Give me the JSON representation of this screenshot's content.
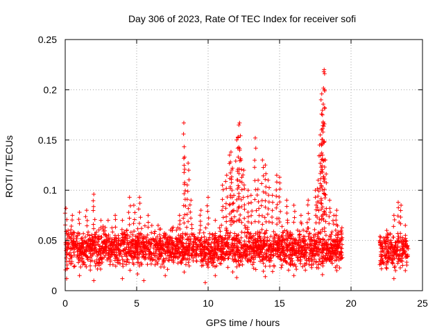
{
  "chart_data": {
    "type": "scatter",
    "title": "Day 306 of 2023, Rate Of TEC Index for receiver sofi",
    "xlabel": "GPS time / hours",
    "ylabel": "ROTI / TECUs",
    "xlim": [
      0,
      25
    ],
    "ylim": [
      0,
      0.25
    ],
    "xticks": [
      "0",
      "5",
      "10",
      "15",
      "20",
      "25"
    ],
    "yticks": [
      "0",
      "0.05",
      "0.1",
      "0.15",
      "0.2",
      "0.25"
    ],
    "grid": true,
    "marker": "+",
    "color": "#ff0000",
    "series": [
      {
        "name": "",
        "points": [
          [
            0.05,
            0.082
          ],
          [
            0.2,
            0.06
          ],
          [
            0.5,
            0.075
          ],
          [
            1.0,
            0.078
          ],
          [
            1.5,
            0.08
          ],
          [
            2.0,
            0.096
          ],
          [
            2.5,
            0.07
          ],
          [
            3.0,
            0.07
          ],
          [
            3.5,
            0.075
          ],
          [
            4.0,
            0.07
          ],
          [
            4.5,
            0.093
          ],
          [
            4.8,
            0.085
          ],
          [
            5.2,
            0.093
          ],
          [
            5.8,
            0.075
          ],
          [
            6.5,
            0.065
          ],
          [
            7.0,
            0.055
          ],
          [
            7.5,
            0.06
          ],
          [
            8.0,
            0.075
          ],
          [
            8.3,
            0.167
          ],
          [
            8.35,
            0.133
          ],
          [
            8.6,
            0.127
          ],
          [
            8.8,
            0.09
          ],
          [
            9.5,
            0.08
          ],
          [
            10.0,
            0.093
          ],
          [
            10.5,
            0.07
          ],
          [
            11.0,
            0.105
          ],
          [
            11.3,
            0.115
          ],
          [
            11.5,
            0.135
          ],
          [
            11.6,
            0.138
          ],
          [
            11.7,
            0.122
          ],
          [
            11.8,
            0.095
          ],
          [
            12.0,
            0.15
          ],
          [
            12.1,
            0.153
          ],
          [
            12.15,
            0.165
          ],
          [
            12.2,
            0.167
          ],
          [
            12.3,
            0.13
          ],
          [
            12.5,
            0.12
          ],
          [
            12.8,
            0.1
          ],
          [
            13.0,
            0.095
          ],
          [
            13.3,
            0.152
          ],
          [
            13.5,
            0.11
          ],
          [
            13.8,
            0.13
          ],
          [
            14.0,
            0.125
          ],
          [
            14.2,
            0.11
          ],
          [
            14.5,
            0.095
          ],
          [
            14.8,
            0.115
          ],
          [
            15.0,
            0.113
          ],
          [
            15.5,
            0.09
          ],
          [
            16.0,
            0.085
          ],
          [
            16.5,
            0.075
          ],
          [
            17.0,
            0.09
          ],
          [
            17.5,
            0.1
          ],
          [
            17.7,
            0.11
          ],
          [
            17.8,
            0.145
          ],
          [
            17.85,
            0.155
          ],
          [
            17.9,
            0.19
          ],
          [
            17.95,
            0.196
          ],
          [
            18.0,
            0.175
          ],
          [
            18.05,
            0.168
          ],
          [
            18.1,
            0.218
          ],
          [
            18.12,
            0.22
          ],
          [
            18.15,
            0.216
          ],
          [
            18.2,
            0.13
          ],
          [
            18.5,
            0.09
          ],
          [
            18.8,
            0.075
          ],
          [
            19.0,
            0.08
          ],
          [
            19.3,
            0.06
          ],
          [
            22.5,
            0.06
          ],
          [
            23.0,
            0.075
          ],
          [
            23.3,
            0.088
          ],
          [
            23.5,
            0.085
          ],
          [
            23.8,
            0.065
          ],
          [
            0.1,
            0.012
          ],
          [
            1.0,
            0.015
          ],
          [
            2.0,
            0.01
          ],
          [
            4.0,
            0.012
          ],
          [
            5.5,
            0.01
          ],
          [
            7.0,
            0.015
          ],
          [
            9.8,
            0.008
          ],
          [
            10.5,
            0.015
          ],
          [
            12.0,
            0.013
          ],
          [
            14.0,
            0.014
          ],
          [
            16.0,
            0.015
          ],
          [
            18.0,
            0.016
          ],
          [
            19.0,
            0.02
          ],
          [
            22.5,
            0.022
          ],
          [
            23.0,
            0.012
          ],
          [
            23.8,
            0.02
          ]
        ]
      }
    ],
    "bands": [
      {
        "x": [
          0.0,
          19.4
        ],
        "low": 0.02,
        "high": 0.062
      },
      {
        "x": [
          22.0,
          24.0
        ],
        "low": 0.018,
        "high": 0.06
      }
    ]
  }
}
